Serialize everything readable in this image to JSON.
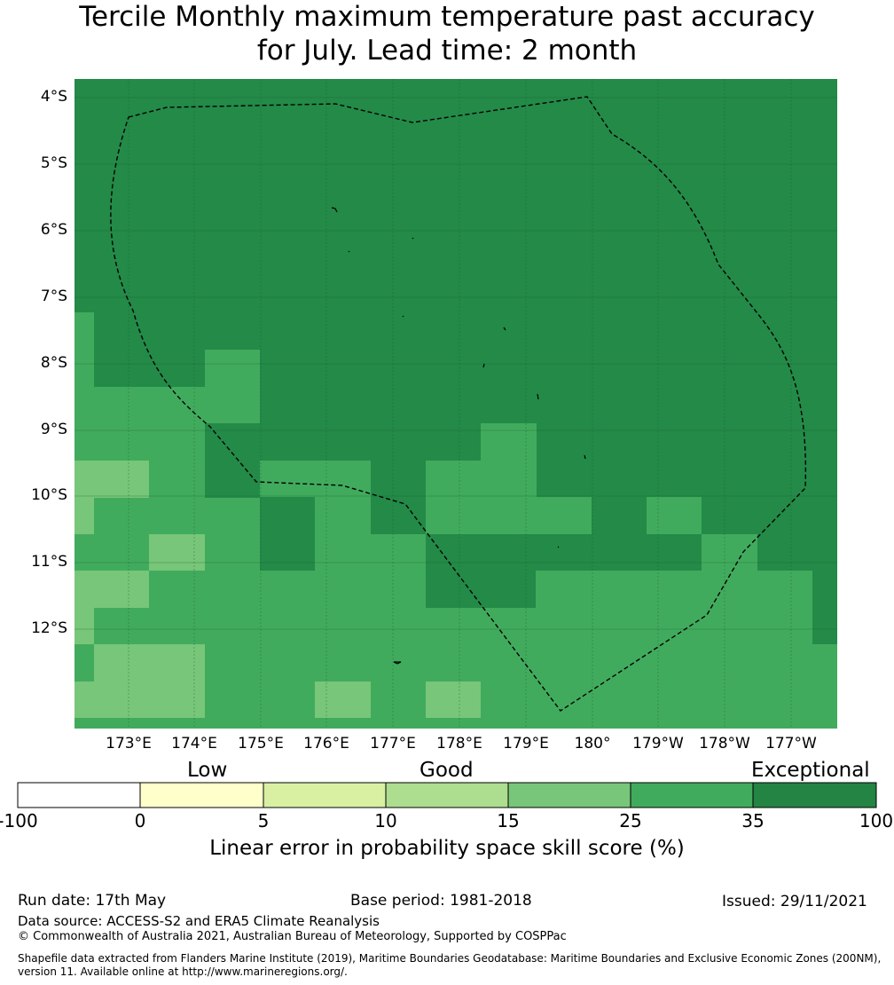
{
  "title_line1": "Tercile Monthly maximum temperature past accuracy",
  "title_line2": "for July. Lead time: 2 month",
  "map": {
    "lat_labels": [
      "4°S",
      "5°S",
      "6°S",
      "7°S",
      "8°S",
      "9°S",
      "10°S",
      "11°S",
      "12°S"
    ],
    "lon_labels": [
      "173°E",
      "174°E",
      "175°E",
      "176°E",
      "177°E",
      "178°E",
      "179°E",
      "180°",
      "179°W",
      "178°W",
      "177°W"
    ],
    "colors": {
      "exceptional_dark": "#238a48",
      "green_25_35": "#41ab5d",
      "green_15_25": "#78c679",
      "boundary": "#000000"
    },
    "boundary_style": "dashed",
    "grid": true
  },
  "colorbar": {
    "categories": [
      "Low",
      "Good",
      "Exceptional"
    ],
    "ticks": [
      "-100",
      "0",
      "5",
      "10",
      "15",
      "25",
      "35",
      "100"
    ],
    "colors": [
      "#ffffff",
      "#ffffcc",
      "#d9f0a3",
      "#addd8e",
      "#78c679",
      "#41ab5d",
      "#238443"
    ],
    "label": "Linear error in probability space skill score (%)"
  },
  "footer": {
    "run_date": "Run date: 17th May",
    "base_period": "Base period: 1981-2018",
    "issued": "Issued: 29/11/2021",
    "data_source": "Data source: ACCESS-S2 and ERA5 Climate Reanalysis",
    "copyright": "© Commonwealth of Australia 2021, Australian Bureau of Meteorology, Supported by COSPPac",
    "shapefile_line1": "Shapefile data extracted from Flanders Marine Institute (2019), Maritime Boundaries Geodatabase: Maritime Boundaries and Exclusive Economic Zones (200NM),",
    "shapefile_line2": "version 11. Available online at http://www.marineregions.org/."
  }
}
